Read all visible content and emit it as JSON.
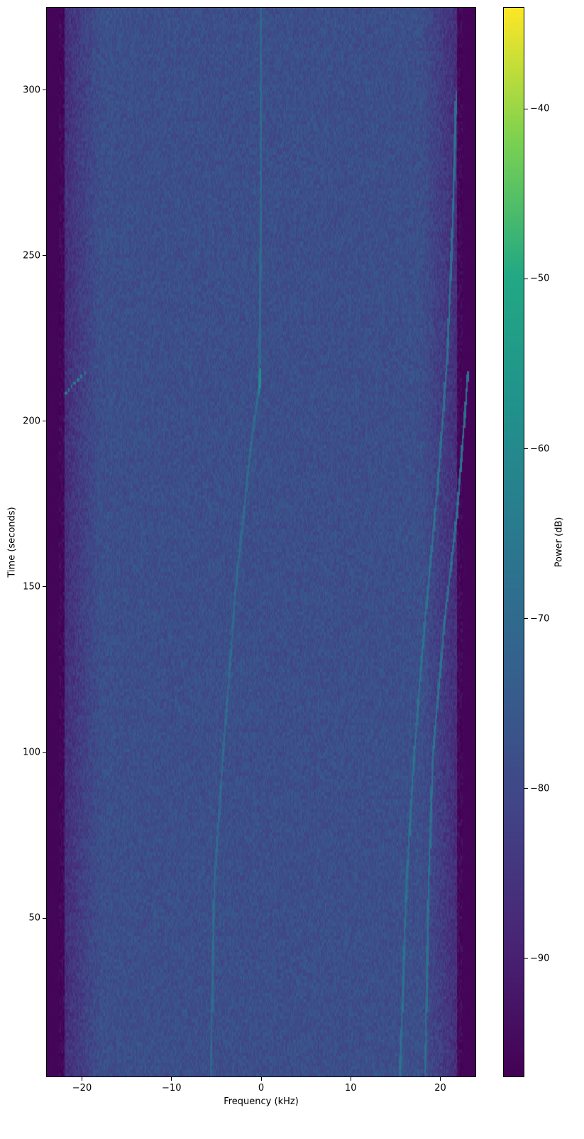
{
  "chart_data": {
    "type": "heatmap",
    "title": "",
    "xlabel": "Frequency (kHz)",
    "ylabel": "Time (seconds)",
    "xlim": [
      -24,
      24
    ],
    "ylim": [
      2,
      325
    ],
    "xticks": [
      -20,
      -10,
      0,
      10,
      20
    ],
    "xtick_labels": [
      "−20",
      "−10",
      "0",
      "10",
      "20"
    ],
    "yticks": [
      50,
      100,
      150,
      200,
      250,
      300
    ],
    "ytick_labels": [
      "50",
      "100",
      "150",
      "200",
      "250",
      "300"
    ],
    "colormap": "viridis",
    "colorbar": {
      "label": "Power (dB)",
      "range": [
        -97,
        -34
      ],
      "ticks": [
        -90,
        -80,
        -70,
        -60,
        -50,
        -40
      ],
      "tick_labels": [
        "−90",
        "−80",
        "−70",
        "−60",
        "−50",
        "−40"
      ]
    },
    "noise_floor_db": -78,
    "passband_edge_khz": 22,
    "out_of_band_db": -96,
    "visible_traces": [
      {
        "points_khz_s": [
          [
            15.6,
            2
          ],
          [
            16.3,
            60
          ],
          [
            17.2,
            100
          ],
          [
            18.4,
            140
          ],
          [
            19.8,
            180
          ],
          [
            20.9,
            220
          ],
          [
            21.5,
            260
          ],
          [
            21.9,
            300
          ]
        ],
        "level_db": -68
      },
      {
        "points_khz_s": [
          [
            18.4,
            2
          ],
          [
            18.8,
            60
          ],
          [
            19.3,
            100
          ],
          [
            20.6,
            140
          ],
          [
            21.9,
            170
          ],
          [
            22.8,
            200
          ],
          [
            23.2,
            215
          ]
        ],
        "level_db": -68
      },
      {
        "points_khz_s": [
          [
            -5.6,
            2
          ],
          [
            -5.2,
            60
          ],
          [
            -4.2,
            100
          ],
          [
            -2.8,
            150
          ],
          [
            -1.2,
            190
          ],
          [
            -0.2,
            210
          ],
          [
            0,
            260
          ],
          [
            0,
            325
          ]
        ],
        "level_db": -70
      },
      {
        "points_khz_s": [
          [
            -22,
            208
          ],
          [
            -21,
            211
          ],
          [
            -19.5,
            215
          ]
        ],
        "level_db": -64
      },
      {
        "points_khz_s": [
          [
            -0.2,
            208
          ],
          [
            -0.1,
            216
          ]
        ],
        "level_db": -60
      }
    ]
  }
}
